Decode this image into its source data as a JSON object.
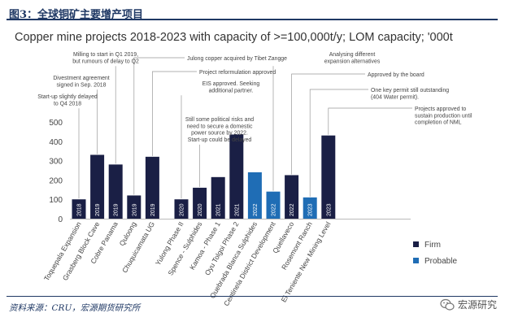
{
  "header": {
    "figure_title": "图3：全球铜矿主要增产项目"
  },
  "footer": {
    "source": "资料来源：CRU，宏源期货研究所"
  },
  "watermark": {
    "text": "宏源研究"
  },
  "colors": {
    "firm": "#1a1f45",
    "probable": "#1f6db5",
    "header": "#1f3864",
    "leader": "#999999"
  },
  "chart_data": {
    "type": "bar",
    "title": "Copper mine projects 2018-2023 with capacity of >=100,000t/y; LOM capacity; '000t",
    "ylim": [
      0,
      500
    ],
    "yticks": [
      "0",
      "100",
      "200",
      "300",
      "400",
      "500"
    ],
    "legend": {
      "position": "right",
      "entries": [
        {
          "label": "Firm",
          "color": "#1a1f45"
        },
        {
          "label": "Probable",
          "color": "#1f6db5"
        }
      ]
    },
    "categories": [
      "Toquepala Expansion",
      "Grasberg Block Cave",
      "Cobre Panama",
      "Quloong",
      "Chuquicamata UG",
      "Yulong Phase II",
      "Spence - Sulphides",
      "Kamoa - Phase 1",
      "Oyu Tolgoi Phase 2",
      "Quebrada Blanca Sulphides",
      "Centinela District Development",
      "Quellaveco",
      "Rosemont Ranch",
      "El Teniente New Mining Level"
    ],
    "years": [
      "2018",
      "2019",
      "2019",
      "2019",
      "2019",
      "2020",
      "2020",
      "2021",
      "2021",
      "2022",
      "2022",
      "2022",
      "2023",
      "2023"
    ],
    "values": [
      100,
      330,
      280,
      120,
      320,
      100,
      160,
      215,
      435,
      240,
      140,
      225,
      110,
      430
    ],
    "status": [
      "Firm",
      "Firm",
      "Firm",
      "Firm",
      "Firm",
      "Firm",
      "Firm",
      "Firm",
      "Firm",
      "Probable",
      "Probable",
      "Firm",
      "Probable",
      "Firm"
    ],
    "annotations": [
      {
        "bar": 0,
        "lines": [
          "Start-up slightly delayed",
          "to Q4 2018"
        ]
      },
      {
        "bar": 1,
        "lines": [
          "Divestment agreement",
          "signed in Sep. 2018"
        ]
      },
      {
        "bar": 2,
        "lines": [
          "Milling to start in Q1 2019,",
          "but rumours of delay to Q2"
        ]
      },
      {
        "bar": 3,
        "lines": [
          "Julong copper acquired by Tibet Zangge"
        ]
      },
      {
        "bar": 4,
        "lines": [
          "Project reformulation approved"
        ]
      },
      {
        "bar": 5,
        "lines": [
          "EIS approved. Seeking",
          "additional partner."
        ]
      },
      {
        "bar": 6,
        "lines": [
          "Still some political risks and",
          "need to secure a domestic",
          "power source by 2022.",
          "Start-up could be delayed"
        ]
      },
      {
        "bar": 10,
        "lines": [
          "Analysing different",
          "expansion alternatives"
        ]
      },
      {
        "bar": 11,
        "lines": [
          "Approved by the board"
        ]
      },
      {
        "bar": 12,
        "lines": [
          "One key permit still outstanding",
          "(404 Water permit)."
        ]
      },
      {
        "bar": 13,
        "lines": [
          "Projects approved to",
          "sustain production until",
          "completion of NML"
        ]
      }
    ]
  }
}
